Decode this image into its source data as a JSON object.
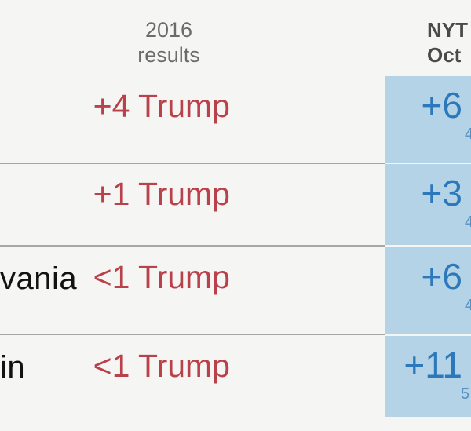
{
  "header": {
    "results_col": {
      "line1": "2016",
      "line2": "results"
    },
    "poll_col": {
      "line1": "NYT",
      "line2": "Oct"
    }
  },
  "rows": [
    {
      "state_fragment": "",
      "result_2016": "+4 Trump",
      "poll_margin": "+6",
      "poll_sub_fragment": "4"
    },
    {
      "state_fragment": "",
      "result_2016": "+1 Trump",
      "poll_margin": "+3",
      "poll_sub_fragment": "4"
    },
    {
      "state_fragment": "vania",
      "result_2016": "<1 Trump",
      "poll_margin": "+6",
      "poll_sub_fragment": "4"
    },
    {
      "state_fragment": "in",
      "result_2016": "<1 Trump",
      "poll_margin": "+11",
      "poll_sub_fragment": "5"
    }
  ],
  "colors": {
    "background": "#f5f5f4",
    "divider": "#a6a6a6",
    "result_red": "#b9414a",
    "poll_cell_blue": "#b4d3e6",
    "poll_value_blue": "#2b79ba",
    "poll_sub_blue": "#5490c2",
    "header_muted": "#6b6b6b",
    "header_strong": "#4a4a4a",
    "state_text": "#121212"
  },
  "chart_data": {
    "type": "table",
    "columns": [
      "state (clipped)",
      "2016 results",
      "NYT Oct poll (clipped)"
    ],
    "rows": [
      [
        "",
        "+4 Trump",
        "+6"
      ],
      [
        "",
        "+1 Trump",
        "+3"
      ],
      [
        "vania",
        "<1 Trump",
        "+6"
      ],
      [
        "in",
        "<1 Trump",
        "+11"
      ]
    ],
    "notes": "Cropped news-graphic table; red column = 2016 margin for Trump, blue column = poll margin; small clipped digits (4/4/4/5) begin a second line under each blue value"
  }
}
